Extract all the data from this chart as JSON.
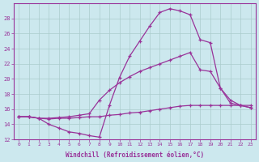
{
  "xlabel": "Windchill (Refroidissement éolien,°C)",
  "xlim": [
    -0.5,
    23.5
  ],
  "ylim": [
    12,
    30
  ],
  "yticks": [
    12,
    14,
    16,
    18,
    20,
    22,
    24,
    26,
    28
  ],
  "xticks": [
    0,
    1,
    2,
    3,
    4,
    5,
    6,
    7,
    8,
    9,
    10,
    11,
    12,
    13,
    14,
    15,
    16,
    17,
    18,
    19,
    20,
    21,
    22,
    23
  ],
  "bg_color": "#cce8ee",
  "grid_color": "#aacccc",
  "line_color": "#993399",
  "curve1_x": [
    0,
    1,
    2,
    3,
    4,
    5,
    6,
    7,
    8,
    9,
    10,
    11,
    12,
    13,
    14,
    15,
    16,
    17,
    18,
    19,
    20,
    21,
    22,
    23
  ],
  "curve1_y": [
    15.0,
    15.0,
    14.8,
    14.0,
    13.5,
    13.0,
    12.8,
    12.5,
    12.3,
    16.5,
    20.2,
    23.0,
    25.0,
    27.0,
    28.8,
    29.3,
    29.0,
    28.5,
    25.2,
    24.8,
    18.8,
    17.2,
    16.5,
    16.2
  ],
  "curve2_x": [
    0,
    1,
    2,
    3,
    4,
    5,
    6,
    7,
    8,
    9,
    10,
    11,
    12,
    13,
    14,
    15,
    16,
    17,
    18,
    19,
    20,
    21,
    22,
    23
  ],
  "curve2_y": [
    15.0,
    15.0,
    14.8,
    14.8,
    14.9,
    15.0,
    15.2,
    15.4,
    17.2,
    18.5,
    19.5,
    20.3,
    21.0,
    21.5,
    22.0,
    22.5,
    23.0,
    23.5,
    21.2,
    21.0,
    18.8,
    16.8,
    16.5,
    16.2
  ],
  "curve3_x": [
    0,
    1,
    2,
    3,
    4,
    5,
    6,
    7,
    8,
    9,
    10,
    11,
    12,
    13,
    14,
    15,
    16,
    17,
    18,
    19,
    20,
    21,
    22,
    23
  ],
  "curve3_y": [
    15.0,
    15.0,
    14.8,
    14.7,
    14.8,
    14.8,
    14.9,
    15.0,
    15.0,
    15.2,
    15.3,
    15.5,
    15.6,
    15.8,
    16.0,
    16.2,
    16.4,
    16.5,
    16.5,
    16.5,
    16.5,
    16.5,
    16.5,
    16.5
  ]
}
